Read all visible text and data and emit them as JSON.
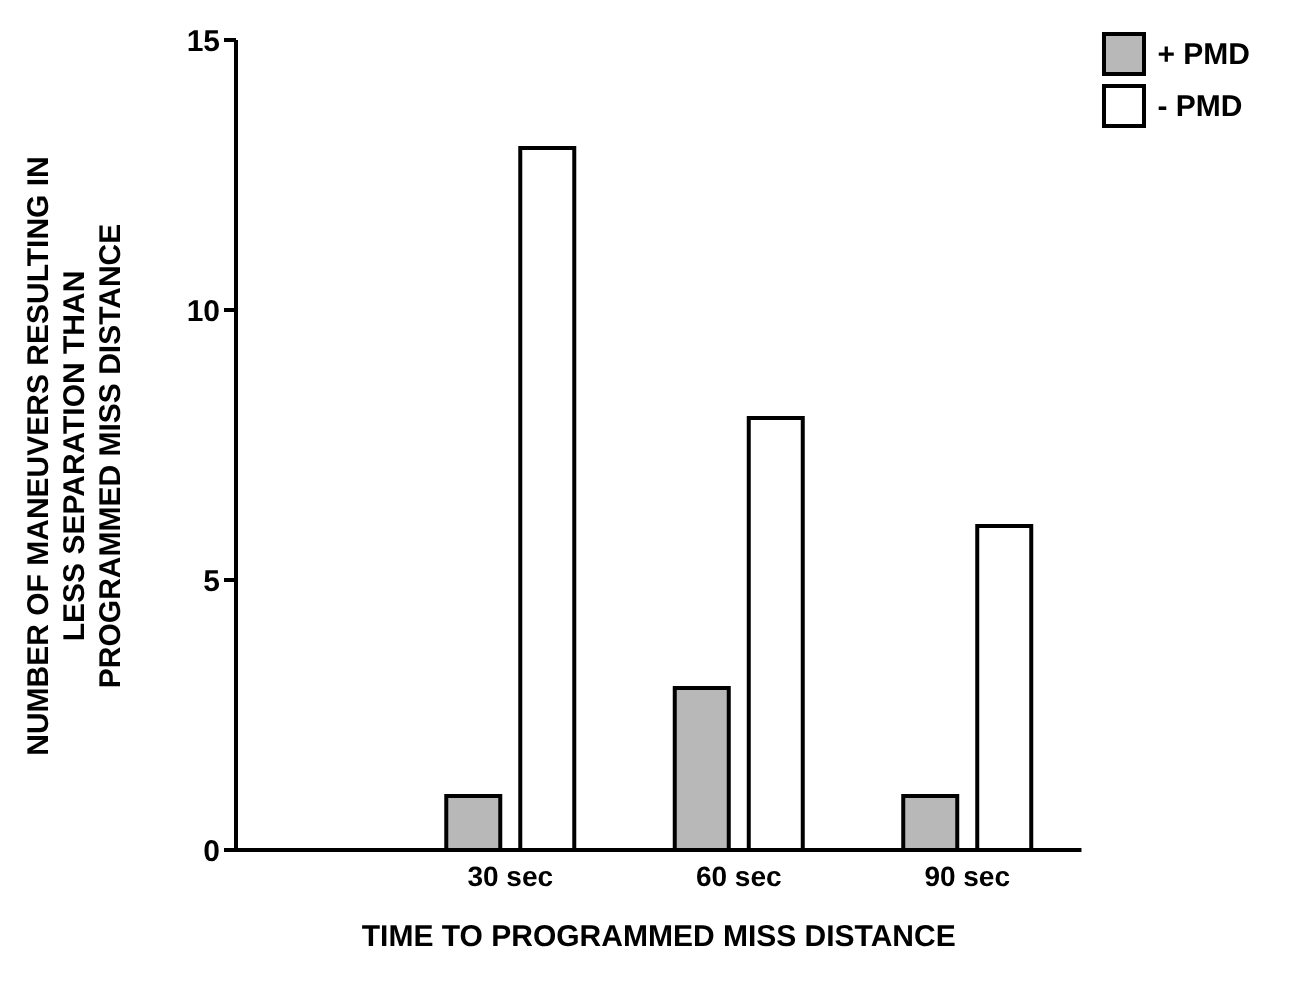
{
  "chart_data": {
    "type": "bar",
    "xlabel": "TIME TO PROGRAMMED MISS DISTANCE",
    "ylabel": "NUMBER OF MANEUVERS RESULTING IN\nLESS SEPARATION THAN\nPROGRAMMED MISS DISTANCE",
    "categories": [
      "30 sec",
      "60 sec",
      "90 sec"
    ],
    "series": [
      {
        "name": "+ PMD",
        "color": "#b8b8b8",
        "values": [
          1,
          3,
          1
        ]
      },
      {
        "name": "- PMD",
        "color": "#ffffff",
        "values": [
          13,
          8,
          6
        ]
      }
    ],
    "ylim": [
      0,
      15
    ],
    "yticks": [
      0,
      5,
      10,
      15
    ],
    "legend": "top right",
    "grid": false
  }
}
